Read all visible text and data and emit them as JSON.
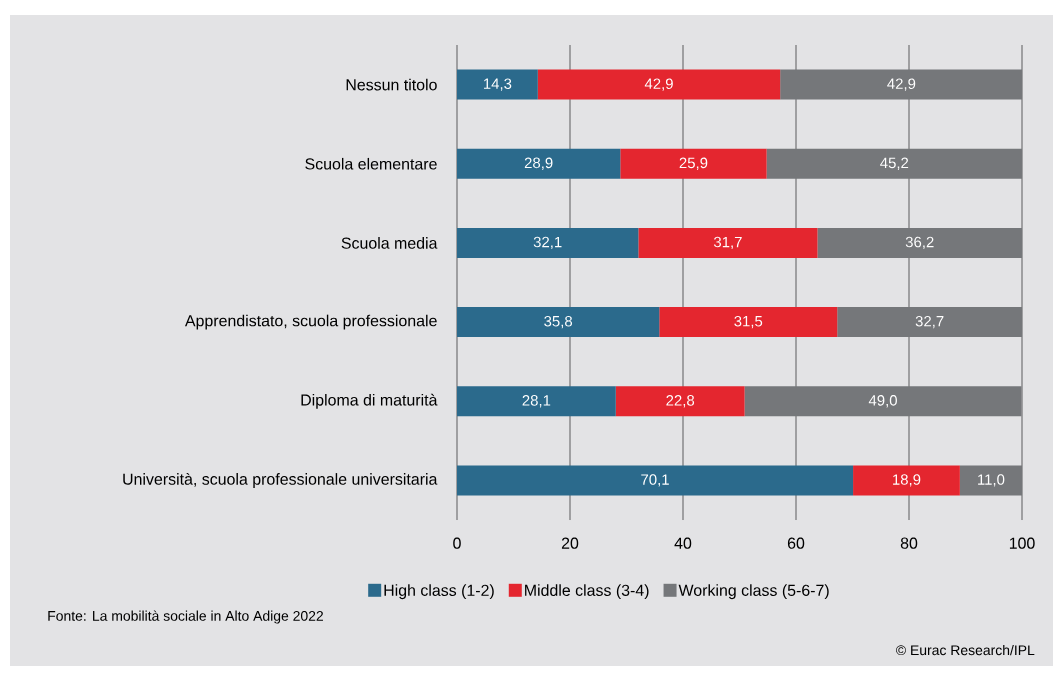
{
  "chart_data": {
    "type": "bar",
    "orientation": "horizontal",
    "stacked": true,
    "categories": [
      "Nessun titolo",
      "Scuola elementare",
      "Scuola media",
      "Apprendistato, scuola professionale",
      "Diploma di maturità",
      "Università, scuola professionale universitaria"
    ],
    "series": [
      {
        "name": "High class (1-2)",
        "color": "#2b6a8c",
        "values": [
          14.3,
          28.9,
          32.1,
          35.8,
          28.1,
          70.1
        ],
        "value_labels": [
          "14,3",
          "28,9",
          "32,1",
          "35,8",
          "28,1",
          "70,1"
        ]
      },
      {
        "name": "Middle class (3-4)",
        "color": "#e4262f",
        "values": [
          42.9,
          25.9,
          31.7,
          31.5,
          22.8,
          18.9
        ],
        "value_labels": [
          "42,9",
          "25,9",
          "31,7",
          "31,5",
          "22,8",
          "18,9"
        ]
      },
      {
        "name": "Working class (5-6-7)",
        "color": "#75777a",
        "values": [
          42.9,
          45.2,
          36.2,
          32.7,
          49.0,
          11.0
        ],
        "value_labels": [
          "42,9",
          "45,2",
          "36,2",
          "32,7",
          "49,0",
          "11,0"
        ]
      }
    ],
    "xlim": [
      0,
      100
    ],
    "xticks": [
      0,
      20,
      40,
      60,
      80,
      100
    ],
    "grid": "x",
    "legend": "bottom",
    "annotations": [
      "Fonte: La mobilità sociale in Alto Adige 2022",
      "© Eurac Research/IPL"
    ]
  }
}
